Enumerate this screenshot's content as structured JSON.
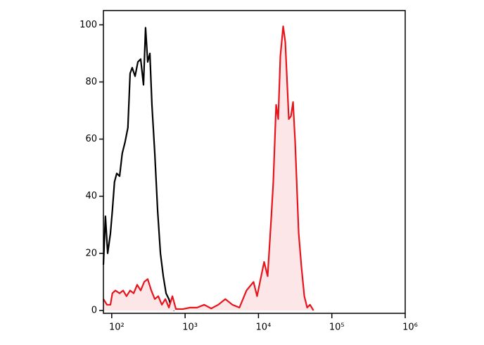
{
  "chart_data": {
    "type": "histogram-overlay",
    "xscale": "log",
    "xlim": [
      77,
      1000000
    ],
    "ylim": [
      -1,
      105
    ],
    "xticks": [
      {
        "value": 100,
        "label": "10²"
      },
      {
        "value": 1000,
        "label": "10³"
      },
      {
        "value": 10000,
        "label": "10⁴"
      },
      {
        "value": 100000,
        "label": "10⁵"
      },
      {
        "value": 1000000,
        "label": "10⁶"
      }
    ],
    "yticks": [
      0,
      20,
      40,
      60,
      80,
      100
    ],
    "series": [
      {
        "color": "#000000",
        "fill": "none",
        "x": [
          77,
          82,
          88,
          96,
          102,
          109,
          117,
          128,
          139,
          152,
          166,
          178,
          190,
          208,
          227,
          248,
          271,
          289,
          309,
          331,
          353,
          386,
          422,
          461,
          504,
          550,
          601,
          657,
          718
        ],
        "values": [
          16,
          33,
          20,
          27,
          35,
          45,
          48,
          47,
          55,
          59,
          64,
          83,
          85,
          82,
          87,
          88,
          79,
          99,
          87,
          90,
          72,
          55,
          35,
          20,
          12,
          6,
          4,
          0.5,
          0
        ]
      },
      {
        "color": "#e8141c",
        "fill": "#fde6e8",
        "x": [
          77,
          86,
          96,
          102,
          112,
          128,
          143,
          159,
          178,
          199,
          222,
          248,
          277,
          309,
          346,
          386,
          431,
          482,
          538,
          601,
          671,
          750,
          936,
          1168,
          1458,
          1819,
          2269,
          2831,
          3533,
          4408,
          5501,
          6864,
          8565,
          9568,
          10686,
          11938,
          13335,
          14896,
          15922,
          17396,
          18592,
          19872,
          21706,
          23201,
          25918,
          27700,
          29606,
          31623,
          35331,
          38594,
          42170,
          46080,
          50344,
          56234
        ],
        "values": [
          4,
          2,
          2,
          6,
          7,
          6,
          7,
          5,
          7,
          6,
          9,
          7,
          10,
          11,
          7,
          4,
          5,
          2,
          4,
          1,
          5,
          0.5,
          0.5,
          1,
          1,
          2,
          0.7,
          2,
          4,
          2,
          1,
          7,
          10,
          5,
          11,
          17,
          12,
          32,
          45,
          72,
          67,
          89,
          99.5,
          94,
          67,
          68,
          73,
          59,
          27,
          15,
          5,
          1,
          2,
          0
        ]
      }
    ]
  }
}
